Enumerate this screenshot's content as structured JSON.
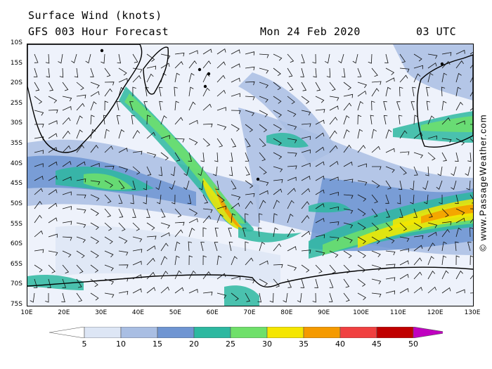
{
  "header": {
    "title": "Surface Wind (knots)",
    "subtitle": "GFS 003 Hour Forecast",
    "date": "Mon 24 Feb 2020",
    "time": "03 UTC"
  },
  "credit": "© www.PassageWeather.com",
  "latitude_labels": [
    "10S",
    "15S",
    "20S",
    "25S",
    "30S",
    "35S",
    "40S",
    "45S",
    "50S",
    "55S",
    "60S",
    "65S",
    "70S",
    "75S"
  ],
  "longitude_labels": [
    "10E",
    "20E",
    "30E",
    "40E",
    "50E",
    "60E",
    "70E",
    "80E",
    "90E",
    "100E",
    "110E",
    "120E",
    "130E"
  ],
  "legend": {
    "labels": [
      "5",
      "10",
      "15",
      "20",
      "25",
      "30",
      "35",
      "40",
      "45",
      "50"
    ],
    "colors": [
      "#ffffff",
      "#dde6f5",
      "#a9bee3",
      "#6f95d2",
      "#2db8a0",
      "#6fe06a",
      "#f5e600",
      "#f59a00",
      "#f04040",
      "#c00000",
      "#c000c0"
    ]
  },
  "map": {
    "projection": "lat-lon",
    "lat_range": [
      "10S",
      "75S"
    ],
    "lon_range": [
      "10E",
      "130E"
    ]
  }
}
